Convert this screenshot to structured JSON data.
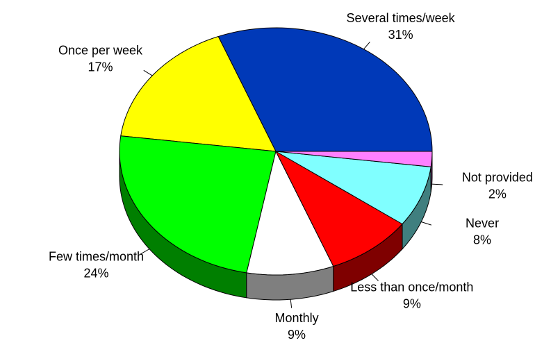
{
  "chart_data": {
    "type": "pie3d",
    "categories": [
      "Several times/week",
      "Once per week",
      "Few times/month",
      "Monthly",
      "Less than once/month",
      "Never",
      "Not provided"
    ],
    "values": [
      31,
      17,
      24,
      9,
      9,
      8,
      2
    ],
    "value_labels": [
      "31%",
      "17%",
      "24%",
      "9%",
      "9%",
      "8%",
      "2%"
    ],
    "colors": [
      "#0039b8",
      "#ffff00",
      "#00ff00",
      "#ffffff",
      "#ff0000",
      "#80ffff",
      "#ff80ff"
    ]
  }
}
